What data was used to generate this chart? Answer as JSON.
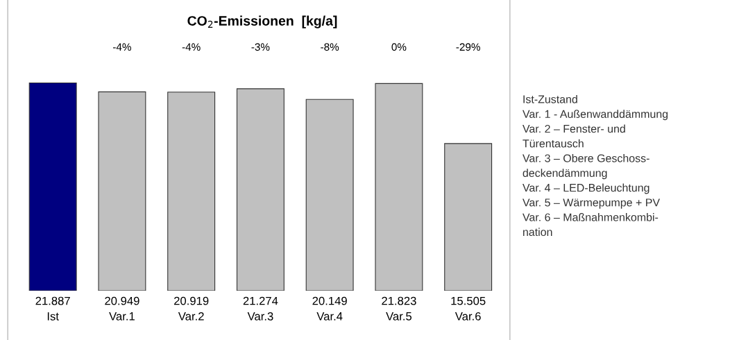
{
  "chart_data": {
    "type": "bar",
    "title": "CO$_{2}$-Emissionen  [kg/a]",
    "categories": [
      "Ist",
      "Var.1",
      "Var.2",
      "Var.3",
      "Var.4",
      "Var.5",
      "Var.6"
    ],
    "values": [
      21887,
      20949,
      20919,
      21274,
      20149,
      21823,
      15505
    ],
    "value_labels": [
      "21.887",
      "20.949",
      "20.919",
      "21.274",
      "20.149",
      "21.823",
      "15.505"
    ],
    "colors": [
      "#000080",
      "#c0c0c0",
      "#c0c0c0",
      "#c0c0c0",
      "#c0c0c0",
      "#c0c0c0",
      "#c0c0c0"
    ],
    "annotations": [
      "-4%",
      "-4%",
      "-3%",
      "-8%",
      "0%",
      "-29%",
      "Ist-Zustand\nVar. 1 - Außenwanddämmung\nVar. 2 – Fenster- und\nTürentausch\nVar. 3 – Obere Geschoss-\ndeckendämmung\nVar. 4 – LED-Beleuchtung\nVar. 5 – Wärmepumpe + PV\nVar. 6 – Maßnahmenkombi-\nnation"
    ],
    "grid": false,
    "legend": false
  }
}
